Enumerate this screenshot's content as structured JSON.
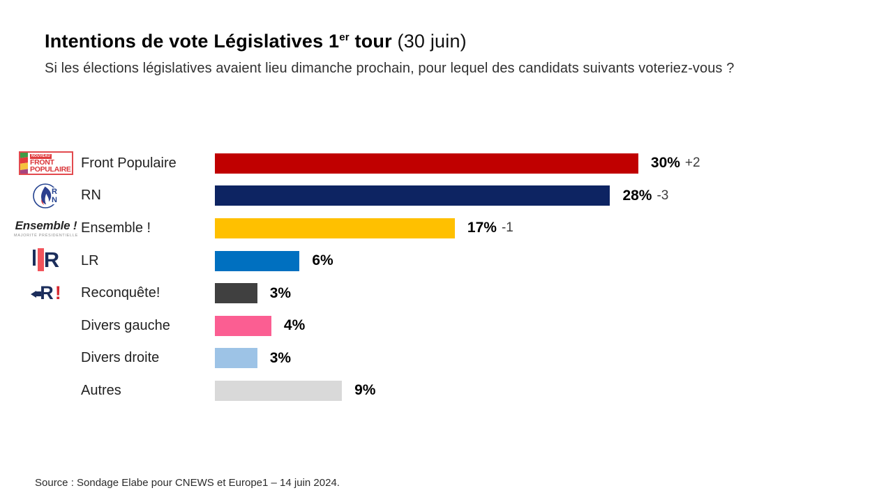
{
  "header": {
    "title_bold": "Intentions de vote Législatives 1",
    "title_sup": "er",
    "title_bold_tail": " tour",
    "title_regular": " (30 juin)",
    "subtitle": "Si les élections législatives avaient lieu dimanche prochain, pour lequel des candidats suivants voteriez-vous ?"
  },
  "source": "Source : Sondage Elabe pour CNEWS et Europe1 – 14 juin 2024.",
  "logos": {
    "nfp": {
      "tag": "NOUVEAU",
      "line1": "FRONT",
      "line2": "POPULAIRE"
    },
    "rn": {
      "letter1": "R",
      "letter2": "N"
    },
    "ensemble": {
      "name": "Ensemble !",
      "sub": "MAJORITÉ PRÉSIDENTIELLE"
    },
    "lr": {
      "letter": "R"
    },
    "reconquete": {
      "letter": "R",
      "exclaim": "!"
    }
  },
  "rows": [
    {
      "party": "Front Populaire",
      "value": 30,
      "value_label": "30%",
      "change": "+2",
      "color": "#c00000",
      "logo": "nfp"
    },
    {
      "party": "RN",
      "value": 28,
      "value_label": "28%",
      "change": "-3",
      "color": "#0d2462",
      "logo": "rn"
    },
    {
      "party": "Ensemble !",
      "value": 17,
      "value_label": "17%",
      "change": "-1",
      "color": "#ffc000",
      "logo": "ensemble"
    },
    {
      "party": "LR",
      "value": 6,
      "value_label": "6%",
      "change": "",
      "color": "#0070c0",
      "logo": "lr"
    },
    {
      "party": "Reconquête!",
      "value": 3,
      "value_label": "3%",
      "change": "",
      "color": "#404040",
      "logo": "reconquete"
    },
    {
      "party": "Divers gauche",
      "value": 4,
      "value_label": "4%",
      "change": "",
      "color": "#fb5e92",
      "logo": null
    },
    {
      "party": "Divers droite",
      "value": 3,
      "value_label": "3%",
      "change": "",
      "color": "#9dc3e6",
      "logo": null
    },
    {
      "party": "Autres",
      "value": 9,
      "value_label": "9%",
      "change": "",
      "color": "#d9d9d9",
      "logo": null
    }
  ],
  "chart_data": {
    "type": "bar",
    "orientation": "horizontal",
    "title": "Intentions de vote Législatives 1er tour (30 juin)",
    "subtitle": "Si les élections législatives avaient lieu dimanche prochain, pour lequel des candidats suivants voteriez-vous ?",
    "categories": [
      "Front Populaire",
      "RN",
      "Ensemble !",
      "LR",
      "Reconquête!",
      "Divers gauche",
      "Divers droite",
      "Autres"
    ],
    "values": [
      30,
      28,
      17,
      6,
      3,
      4,
      3,
      9
    ],
    "changes": [
      "+2",
      "-3",
      "-1",
      null,
      null,
      null,
      null,
      null
    ],
    "colors": [
      "#c00000",
      "#0d2462",
      "#ffc000",
      "#0070c0",
      "#404040",
      "#fb5e92",
      "#9dc3e6",
      "#d9d9d9"
    ],
    "value_suffix": "%",
    "xlim": [
      0,
      30
    ],
    "grid": false,
    "legend": false,
    "source": "Source : Sondage Elabe pour CNEWS et Europe1 – 14 juin 2024."
  }
}
